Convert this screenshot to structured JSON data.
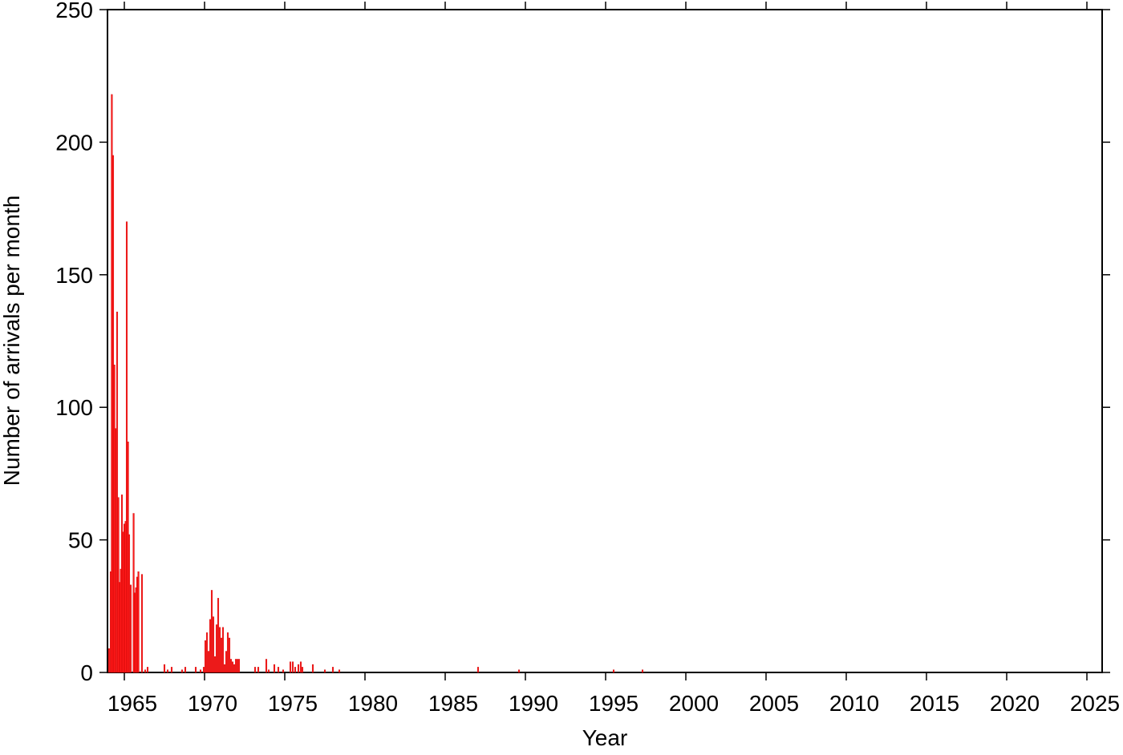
{
  "chart_data": {
    "type": "bar",
    "x_label": "Year",
    "y_label": "Number of arrivals per month",
    "color": "#ff1a1a",
    "xlim": [
      1963.95,
      2025.95
    ],
    "ylim": [
      0,
      250
    ],
    "xticks": [
      1965,
      1970,
      1975,
      1980,
      1985,
      1990,
      1995,
      2000,
      2005,
      2010,
      2015,
      2020,
      2025
    ],
    "yticks": [
      0,
      50,
      100,
      150,
      200,
      250
    ],
    "x": [
      1964.05,
      1964.15,
      1964.22,
      1964.3,
      1964.38,
      1964.45,
      1964.55,
      1964.63,
      1964.7,
      1964.78,
      1964.85,
      1964.93,
      1965.0,
      1965.08,
      1965.15,
      1965.23,
      1965.3,
      1965.4,
      1965.58,
      1965.65,
      1965.73,
      1965.8,
      1965.88,
      1966.1,
      1966.3,
      1966.45,
      1967.5,
      1967.7,
      1967.95,
      1968.6,
      1968.8,
      1969.45,
      1969.75,
      1969.95,
      1970.05,
      1970.15,
      1970.25,
      1970.35,
      1970.45,
      1970.55,
      1970.65,
      1970.75,
      1970.85,
      1970.95,
      1971.05,
      1971.15,
      1971.25,
      1971.35,
      1971.45,
      1971.55,
      1971.65,
      1971.75,
      1971.85,
      1971.95,
      1972.05,
      1972.15,
      1973.15,
      1973.35,
      1973.85,
      1974.0,
      1974.35,
      1974.6,
      1974.9,
      1975.35,
      1975.5,
      1975.65,
      1975.85,
      1976.0,
      1976.1,
      1976.75,
      1977.5,
      1978.0,
      1978.4,
      1987.05,
      1989.6,
      1995.5,
      1997.3
    ],
    "values": [
      9,
      38,
      218,
      195,
      116,
      92,
      136,
      66,
      34,
      39,
      67,
      53,
      56,
      57,
      170,
      87,
      52,
      33,
      60,
      30,
      32,
      36,
      38,
      37,
      1,
      2,
      3,
      1,
      2,
      1,
      2,
      2,
      1,
      2,
      12,
      15,
      8,
      20,
      31,
      21,
      6,
      18,
      28,
      17,
      13,
      17,
      3,
      8,
      15,
      13,
      5,
      4,
      3,
      5,
      5,
      5,
      2,
      2,
      5,
      1,
      3,
      2,
      1,
      4,
      4,
      2,
      3,
      4,
      2,
      3,
      1,
      2,
      1,
      2,
      1,
      1,
      1
    ]
  }
}
